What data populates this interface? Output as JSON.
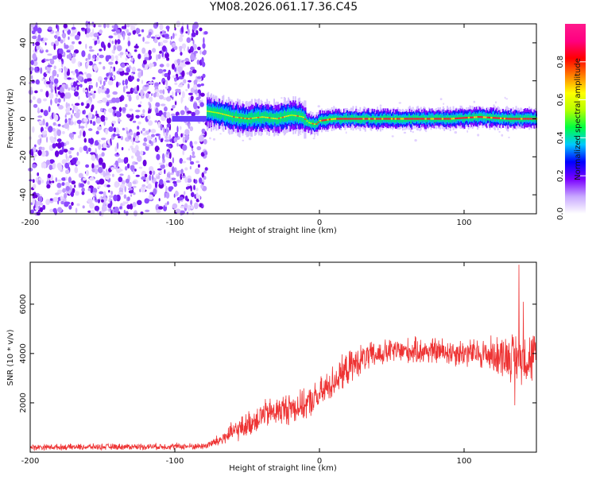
{
  "figure_title": "YM08.2026.061.17.36.C45",
  "chart_data": [
    {
      "type": "heatmap",
      "title": "YM08.2026.061.17.36.C45",
      "xlabel": "Height of straight line (km)",
      "ylabel": "Frequency (Hz)",
      "xlim": [
        -200,
        150
      ],
      "ylim": [
        -50,
        50
      ],
      "xticks": [
        -200,
        -100,
        0,
        100
      ],
      "yticks": [
        -40,
        -20,
        0,
        20,
        40
      ],
      "xtick_labels": [
        "-200",
        "-100",
        "0",
        "100"
      ],
      "ytick_labels": [
        "-40",
        "-20",
        "0",
        "20",
        "40"
      ],
      "noise_region_x": [
        -200,
        -78
      ],
      "signal_start_x": -78,
      "ridge": [
        {
          "x": -78,
          "f": 4
        },
        {
          "x": -70,
          "f": 3
        },
        {
          "x": -60,
          "f": 1
        },
        {
          "x": -50,
          "f": 0
        },
        {
          "x": -40,
          "f": 1
        },
        {
          "x": -30,
          "f": 0
        },
        {
          "x": -20,
          "f": 2
        },
        {
          "x": -12,
          "f": 1
        },
        {
          "x": -8,
          "f": -2
        },
        {
          "x": -3,
          "f": -3
        },
        {
          "x": 0,
          "f": -1
        },
        {
          "x": 10,
          "f": 0
        },
        {
          "x": 30,
          "f": 0
        },
        {
          "x": 60,
          "f": 0
        },
        {
          "x": 90,
          "f": 0
        },
        {
          "x": 110,
          "f": 1
        },
        {
          "x": 130,
          "f": 0
        },
        {
          "x": 150,
          "f": 0
        }
      ],
      "colorbar": {
        "label": "Normalized spectral amplitude",
        "range": [
          0.0,
          1.0
        ],
        "ticks": [
          0.0,
          0.2,
          0.4,
          0.6,
          0.8
        ],
        "tick_labels": [
          "0.0",
          "0.2",
          "0.4",
          "0.6",
          "0.8"
        ],
        "colors": [
          "#ffffff",
          "#c8a8ff",
          "#7a00ff",
          "#0000ff",
          "#00c8ff",
          "#00ff40",
          "#b4ff00",
          "#ffff00",
          "#ff8000",
          "#ff0000",
          "#ff0080",
          "#ff1a8c"
        ]
      }
    },
    {
      "type": "line",
      "xlabel": "Height of straight line (km)",
      "ylabel": "SNR (10 * v/v)",
      "xlim": [
        -200,
        150
      ],
      "ylim": [
        0,
        7700
      ],
      "xticks": [
        -200,
        -100,
        0,
        100
      ],
      "yticks": [
        2000,
        4000,
        6000
      ],
      "xtick_labels": [
        "-200",
        "-100",
        "0",
        "100"
      ],
      "ytick_labels": [
        "2000",
        "4000",
        "6000"
      ],
      "color": "#ee3333",
      "envelope": [
        {
          "x": -200,
          "mean": 200,
          "amp": 140
        },
        {
          "x": -80,
          "mean": 240,
          "amp": 160
        },
        {
          "x": -70,
          "mean": 450,
          "amp": 300
        },
        {
          "x": -60,
          "mean": 800,
          "amp": 500
        },
        {
          "x": -50,
          "mean": 1100,
          "amp": 600
        },
        {
          "x": -40,
          "mean": 1500,
          "amp": 700
        },
        {
          "x": -30,
          "mean": 1650,
          "amp": 700
        },
        {
          "x": -20,
          "mean": 1800,
          "amp": 800
        },
        {
          "x": -10,
          "mean": 1900,
          "amp": 700
        },
        {
          "x": 0,
          "mean": 2300,
          "amp": 800
        },
        {
          "x": 10,
          "mean": 2900,
          "amp": 800
        },
        {
          "x": 20,
          "mean": 3400,
          "amp": 800
        },
        {
          "x": 30,
          "mean": 3800,
          "amp": 700
        },
        {
          "x": 50,
          "mean": 4100,
          "amp": 600
        },
        {
          "x": 80,
          "mean": 4100,
          "amp": 650
        },
        {
          "x": 110,
          "mean": 4000,
          "amp": 700
        },
        {
          "x": 130,
          "mean": 3900,
          "amp": 1100
        },
        {
          "x": 150,
          "mean": 3800,
          "amp": 1300
        }
      ],
      "spikes": [
        {
          "x": 138,
          "y": 7600
        },
        {
          "x": 141,
          "y": 6100
        },
        {
          "x": 135,
          "y": 1900
        }
      ]
    }
  ]
}
